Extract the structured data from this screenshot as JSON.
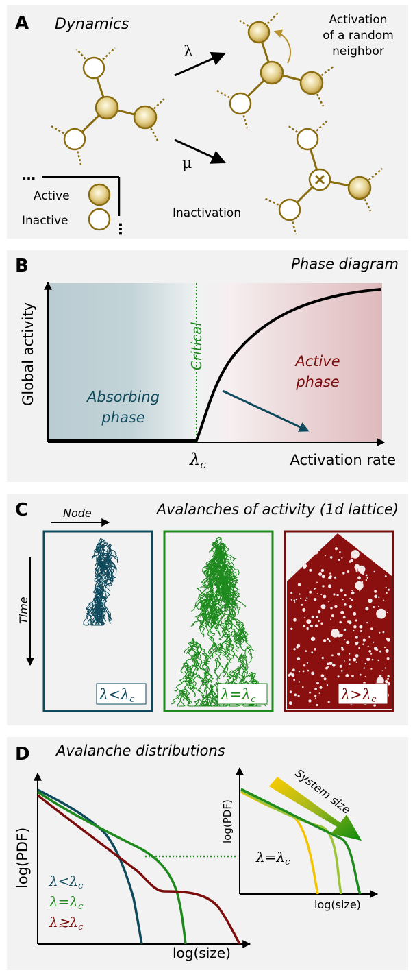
{
  "panel_a": {
    "letter": "A",
    "title": "Dynamics",
    "lambda": "λ",
    "mu": "μ",
    "activation_line1": "Activation",
    "activation_line2": "of a random",
    "activation_line3": "neighbor",
    "inactivation": "Inactivation",
    "legend_active": "Active",
    "legend_inactive": "Inactive"
  },
  "panel_b": {
    "letter": "B",
    "title": "Phase diagram",
    "ylabel": "Global activity",
    "xlabel": "Activation rate",
    "critical": "Critical",
    "absorbing_line1": "Absorbing",
    "absorbing_line2": "phase",
    "active_line1": "Active",
    "active_line2": "phase",
    "lambda_c": "λ",
    "lambda_c_sub": "c"
  },
  "panel_c": {
    "letter": "C",
    "title": "Avalanches of activity (1d lattice)",
    "node": "Node",
    "time": "Time",
    "sub_lt": {
      "lam": "λ<λ",
      "sub": "c"
    },
    "sub_eq": {
      "lam": "λ=λ",
      "sub": "c"
    },
    "sub_gt": {
      "lam": "λ>λ",
      "sub": "c"
    }
  },
  "panel_d": {
    "letter": "D",
    "title": "Avalanche distributions",
    "ylabel": "log(PDF)",
    "xlabel": "log(size)",
    "inset_ylabel": "log(PDF)",
    "inset_xlabel": "log(size)",
    "system_size": "System size",
    "inset_lam": "λ=λ",
    "inset_sub": "c",
    "legend": [
      {
        "lam": "λ<λ",
        "sub": "c",
        "color": "#0f4a5c"
      },
      {
        "lam": "λ=λ",
        "sub": "c",
        "color": "#1e8a1e"
      },
      {
        "lam": "λ≳λ",
        "sub": "c",
        "color": "#7a0c0c"
      }
    ]
  },
  "colors": {
    "panel_bg": "#f2f2f2",
    "node_stroke": "#8a6d10",
    "edge": "#8a6d10",
    "blue": "#0f4a5c",
    "green": "#1e8a1e",
    "red": "#7a0c0c"
  }
}
